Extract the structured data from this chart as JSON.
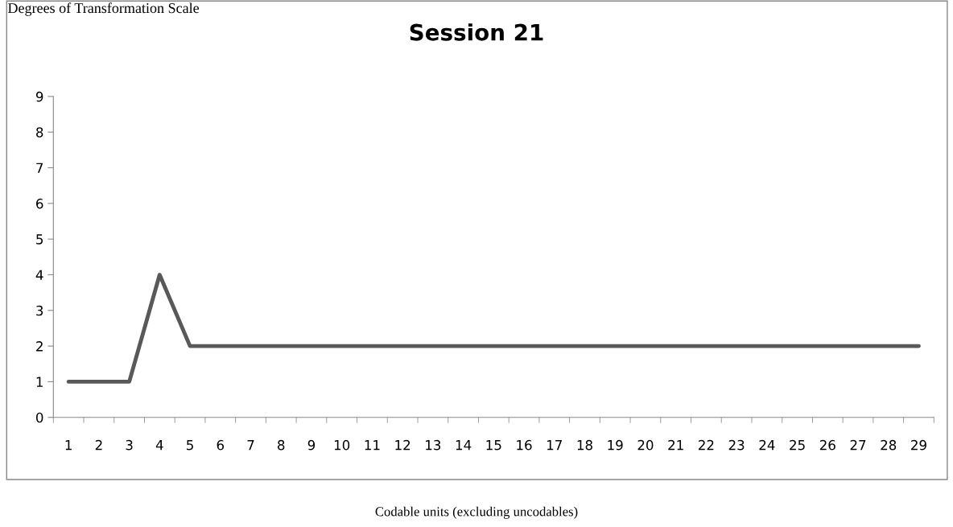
{
  "chart_data": {
    "type": "line",
    "title": "Session 21",
    "annotations": [
      "Degrees of Transformation Scale"
    ],
    "xlabel": "Codable units (excluding uncodables)",
    "categories": [
      "1",
      "2",
      "3",
      "4",
      "5",
      "6",
      "7",
      "8",
      "9",
      "10",
      "11",
      "12",
      "13",
      "14",
      "15",
      "16",
      "17",
      "18",
      "19",
      "20",
      "21",
      "22",
      "23",
      "24",
      "25",
      "26",
      "27",
      "28",
      "29"
    ],
    "series": [
      {
        "color": "#595959",
        "values": [
          1,
          1,
          1,
          4,
          2,
          2,
          2,
          2,
          2,
          2,
          2,
          2,
          2,
          2,
          2,
          2,
          2,
          2,
          2,
          2,
          2,
          2,
          2,
          2,
          2,
          2,
          2,
          2,
          2
        ]
      }
    ],
    "ylim": [
      0,
      9
    ],
    "yticks": [
      0,
      1,
      2,
      3,
      4,
      5,
      6,
      7,
      8,
      9
    ],
    "grid": false,
    "marker": "none",
    "line_style": "solid"
  }
}
